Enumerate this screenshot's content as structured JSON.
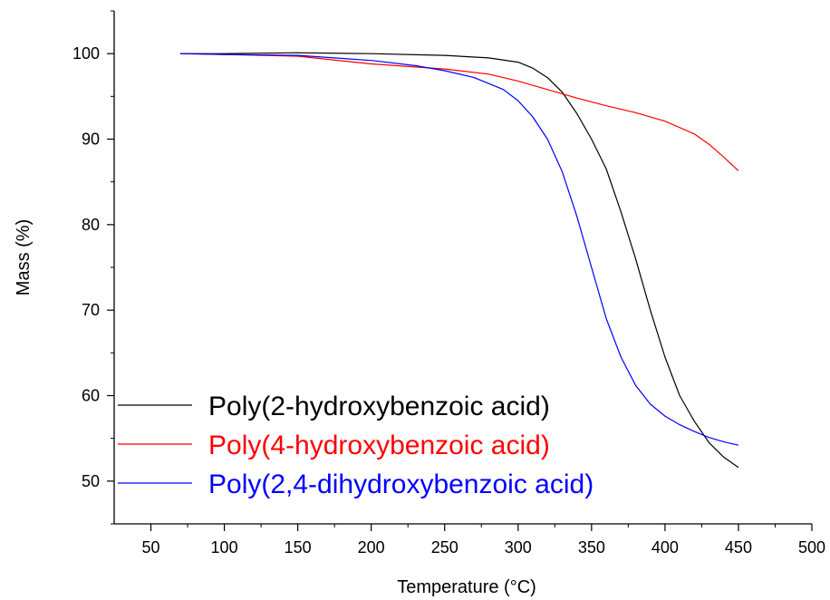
{
  "chart_data": {
    "type": "line",
    "title": "",
    "xlabel": "Temperature (°C)",
    "ylabel": "Mass (%)",
    "xlim": [
      25,
      500
    ],
    "ylim": [
      45,
      105
    ],
    "xticks": [
      50,
      100,
      150,
      200,
      250,
      300,
      350,
      400,
      450,
      500
    ],
    "yticks": [
      50,
      60,
      70,
      80,
      90,
      100
    ],
    "grid": false,
    "legend_position": "lower-left",
    "series": [
      {
        "name": "Poly(2-hydroxybenzoic acid)",
        "color": "#000000",
        "x": [
          70,
          100,
          150,
          200,
          250,
          280,
          300,
          310,
          320,
          330,
          340,
          350,
          360,
          370,
          380,
          390,
          400,
          410,
          420,
          430,
          440,
          450
        ],
        "y": [
          100,
          100,
          100.1,
          100,
          99.8,
          99.5,
          99,
          98.3,
          97.2,
          95.5,
          93,
          90,
          86.5,
          81.5,
          76,
          70,
          64.5,
          60,
          57,
          54.5,
          52.8,
          51.6
        ]
      },
      {
        "name": "Poly(4-hydroxybenzoic acid)",
        "color": "#ff0000",
        "x": [
          70,
          100,
          150,
          200,
          250,
          280,
          300,
          320,
          340,
          360,
          380,
          400,
          420,
          430,
          440,
          450
        ],
        "y": [
          100,
          99.9,
          99.7,
          98.8,
          98.2,
          97.6,
          96.8,
          95.8,
          94.8,
          93.9,
          93.1,
          92.1,
          90.6,
          89.4,
          87.9,
          86.3
        ]
      },
      {
        "name": "Poly(2,4-dihydroxybenzoic acid)",
        "color": "#0000ff",
        "x": [
          70,
          100,
          150,
          200,
          230,
          250,
          270,
          290,
          300,
          310,
          320,
          330,
          340,
          350,
          360,
          370,
          380,
          390,
          400,
          410,
          420,
          430,
          440,
          450
        ],
        "y": [
          100,
          99.9,
          99.8,
          99.2,
          98.6,
          98,
          97.2,
          95.8,
          94.5,
          92.6,
          90,
          86.2,
          81,
          75,
          69,
          64.5,
          61.2,
          59,
          57.6,
          56.6,
          55.8,
          55.1,
          54.6,
          54.2
        ]
      }
    ]
  }
}
